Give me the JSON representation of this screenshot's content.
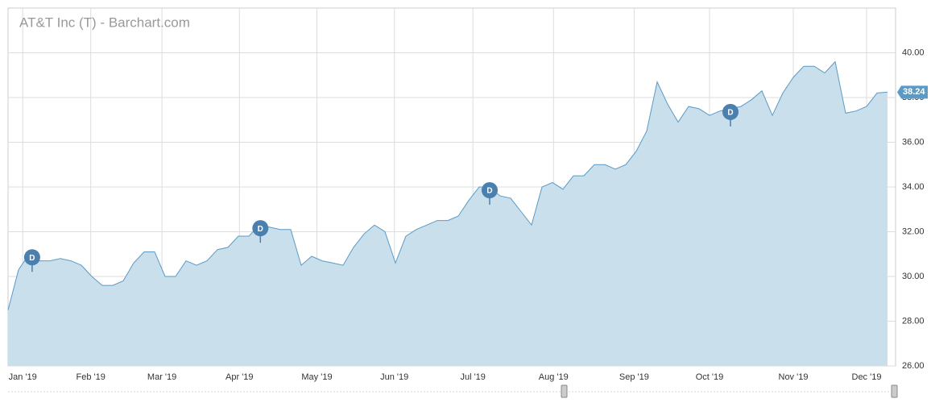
{
  "chart_data": {
    "type": "area",
    "title": "AT&T Inc (T) - Barchart.com",
    "series": [
      {
        "name": "T",
        "color": "#5a9ac6",
        "fill": "#c9dfec",
        "values": [
          28.5,
          30.3,
          31.0,
          30.7,
          30.7,
          30.8,
          30.7,
          30.5,
          30.0,
          29.6,
          29.6,
          29.8,
          30.6,
          31.1,
          31.1,
          30.0,
          30.0,
          30.7,
          30.5,
          30.7,
          31.2,
          31.3,
          31.8,
          31.8,
          32.3,
          32.2,
          32.1,
          32.1,
          30.5,
          30.9,
          30.7,
          30.6,
          30.5,
          31.3,
          31.9,
          32.3,
          32.0,
          30.6,
          31.8,
          32.1,
          32.3,
          32.5,
          32.5,
          32.7,
          33.4,
          34.0,
          34.0,
          33.6,
          33.5,
          32.9,
          32.3,
          34.0,
          34.2,
          33.9,
          34.5,
          34.5,
          35.0,
          35.0,
          34.8,
          35.0,
          35.6,
          36.5,
          38.7,
          37.7,
          36.9,
          37.6,
          37.5,
          37.2,
          37.4,
          37.5,
          37.6,
          37.9,
          38.3,
          37.2,
          38.2,
          38.9,
          39.4,
          39.4,
          39.1,
          39.6,
          37.3,
          37.4,
          37.6,
          38.2,
          38.24
        ]
      }
    ],
    "xlim": [
      0,
      84.77
    ],
    "xticks": [
      {
        "value": 1.4,
        "label": "Jan '19"
      },
      {
        "value": 7.9,
        "label": "Feb '19"
      },
      {
        "value": 14.7,
        "label": "Mar '19"
      },
      {
        "value": 22.1,
        "label": "Apr '19"
      },
      {
        "value": 29.5,
        "label": "May '19"
      },
      {
        "value": 36.9,
        "label": "Jun '19"
      },
      {
        "value": 44.4,
        "label": "Jul '19"
      },
      {
        "value": 52.1,
        "label": "Aug '19"
      },
      {
        "value": 59.8,
        "label": "Sep '19"
      },
      {
        "value": 67.0,
        "label": "Oct '19"
      },
      {
        "value": 75.0,
        "label": "Nov '19"
      },
      {
        "value": 82.0,
        "label": "Dec '19"
      }
    ],
    "ylim": [
      26,
      42
    ],
    "yticks": [
      {
        "value": 26,
        "label": "26.00"
      },
      {
        "value": 28,
        "label": "28.00"
      },
      {
        "value": 30,
        "label": "30.00"
      },
      {
        "value": 32,
        "label": "32.00"
      },
      {
        "value": 34,
        "label": "34.00"
      },
      {
        "value": 36,
        "label": "36.00"
      },
      {
        "value": 38,
        "label": "38.00"
      },
      {
        "value": 40,
        "label": "40.00"
      }
    ],
    "grid": true,
    "annotations": [
      {
        "x": 2.3,
        "label": "D"
      },
      {
        "x": 24.1,
        "label": "D"
      },
      {
        "x": 46.0,
        "label": "D"
      },
      {
        "x": 69.0,
        "label": "D"
      }
    ]
  }
}
